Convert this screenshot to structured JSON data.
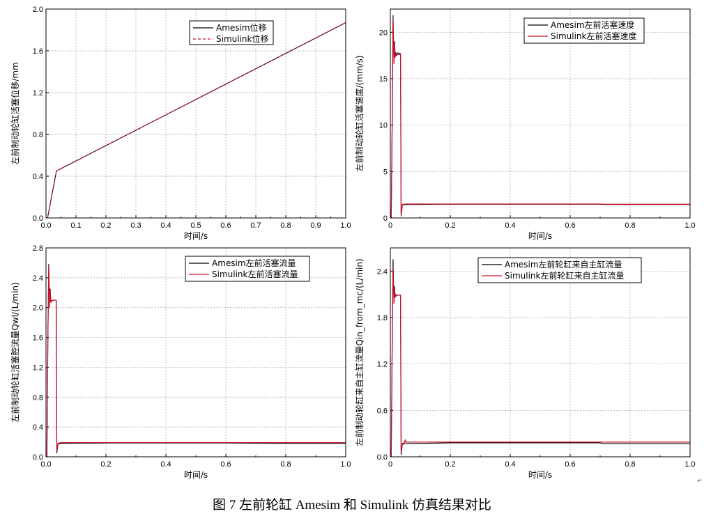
{
  "caption": "图 7 左前轮缸 Amesim 和 Simulink 仿真结果对比",
  "colors": {
    "amesim": "#000000",
    "simulink": "#c8102e",
    "grid": "#a0a0a0"
  },
  "chart_data": [
    {
      "type": "line",
      "xlabel": "时间/s",
      "ylabel": "左前制动轮缸活塞位移/mm",
      "xlim": [
        0,
        1.0
      ],
      "ylim": [
        0,
        2.0
      ],
      "xticks": [
        0,
        0.1,
        0.2,
        0.3,
        0.4,
        0.5,
        0.6,
        0.7,
        0.8,
        0.9,
        1.0
      ],
      "yticks": [
        0,
        0.4,
        0.8,
        1.2,
        1.6,
        2.0
      ],
      "xtick_labels": [
        "0.0",
        "0.1",
        "0.2",
        "0.3",
        "0.4",
        "0.5",
        "0.6",
        "0.7",
        "0.8",
        "0.9",
        "1.0"
      ],
      "ytick_labels": [
        "0.0",
        "0.4",
        "0.8",
        "1.2",
        "1.6",
        "2.0"
      ],
      "legend_position": "top-right",
      "series": [
        {
          "name": "Amesim位移",
          "style": "solid",
          "x": [
            0.005,
            0.035,
            1.0
          ],
          "y": [
            0.0,
            0.45,
            1.87
          ]
        },
        {
          "name": "Simulink位移",
          "style": "dashed",
          "x": [
            0.005,
            0.035,
            1.0
          ],
          "y": [
            0.0,
            0.45,
            1.87
          ]
        }
      ]
    },
    {
      "type": "line",
      "xlabel": "时间/s",
      "ylabel": "左前制动轮缸活塞速度/(mm/s)",
      "xlim": [
        0,
        1.0
      ],
      "ylim": [
        0,
        22.5
      ],
      "xticks": [
        0,
        0.2,
        0.4,
        0.6,
        0.8,
        1.0
      ],
      "yticks": [
        0,
        5,
        10,
        15,
        20
      ],
      "xtick_labels": [
        "0",
        "0.2",
        "0.4",
        "0.6",
        "0.8",
        "1.0"
      ],
      "ytick_labels": [
        "0",
        "5",
        "10",
        "15",
        "20"
      ],
      "legend_position": "top-right",
      "series": [
        {
          "name": "Amesim左前活塞速度",
          "style": "solid",
          "x": [
            0.003,
            0.006,
            0.009,
            0.012,
            0.014,
            0.016,
            0.018,
            0.02,
            0.025,
            0.03,
            0.034,
            0.036,
            0.04,
            0.05,
            0.2,
            0.4,
            0.6,
            0.7,
            0.71,
            0.8,
            1.0
          ],
          "y": [
            0,
            10,
            21.8,
            16.8,
            19,
            17.5,
            17.8,
            17.6,
            17.8,
            17.7,
            17.7,
            0.2,
            1.4,
            1.45,
            1.48,
            1.48,
            1.48,
            1.48,
            1.45,
            1.45,
            1.45
          ]
        },
        {
          "name": "Simulink左前活塞速度",
          "style": "solid",
          "x": [
            0.003,
            0.006,
            0.009,
            0.012,
            0.014,
            0.016,
            0.018,
            0.02,
            0.025,
            0.03,
            0.034,
            0.036,
            0.04,
            0.05,
            0.2,
            0.4,
            0.6,
            0.7,
            0.71,
            0.8,
            1.0
          ],
          "y": [
            0,
            10,
            21.4,
            16.6,
            18.7,
            17.3,
            17.6,
            17.5,
            17.6,
            17.6,
            17.6,
            0.3,
            1.45,
            1.5,
            1.5,
            1.5,
            1.5,
            1.5,
            1.48,
            1.48,
            1.48
          ]
        }
      ]
    },
    {
      "type": "line",
      "xlabel": "时间/s",
      "ylabel": "左前制动轮缸活塞腔流量Qwl/(L/min)",
      "xlim": [
        0,
        1.0
      ],
      "ylim": [
        0,
        2.8
      ],
      "xticks": [
        0,
        0.2,
        0.4,
        0.6,
        0.8,
        1.0
      ],
      "yticks": [
        0,
        0.4,
        0.8,
        1.2,
        1.6,
        2.0,
        2.4,
        2.8
      ],
      "xtick_labels": [
        "0.0",
        "0.2",
        "0.4",
        "0.6",
        "0.8",
        "1.0"
      ],
      "ytick_labels": [
        "0.0",
        "0.4",
        "0.8",
        "1.2",
        "1.6",
        "2.0",
        "2.4",
        "2.8"
      ],
      "legend_position": "top-right",
      "series": [
        {
          "name": "Amesim左前活塞流量",
          "style": "solid",
          "x": [
            0.003,
            0.006,
            0.009,
            0.012,
            0.014,
            0.016,
            0.018,
            0.02,
            0.025,
            0.03,
            0.034,
            0.036,
            0.04,
            0.05,
            0.2,
            0.4,
            0.6,
            0.8,
            1.0
          ],
          "y": [
            0,
            1.5,
            2.58,
            2.0,
            2.25,
            2.08,
            2.1,
            2.09,
            2.1,
            2.1,
            2.1,
            0.05,
            0.17,
            0.18,
            0.185,
            0.185,
            0.185,
            0.18,
            0.18
          ]
        },
        {
          "name": "Simulink左前活塞流量",
          "style": "solid",
          "x": [
            0.003,
            0.006,
            0.009,
            0.012,
            0.014,
            0.016,
            0.018,
            0.02,
            0.025,
            0.03,
            0.034,
            0.036,
            0.04,
            0.05,
            0.2,
            0.4,
            0.6,
            0.8,
            1.0
          ],
          "y": [
            0,
            1.5,
            2.55,
            2.0,
            2.22,
            2.07,
            2.1,
            2.09,
            2.1,
            2.1,
            2.1,
            0.08,
            0.18,
            0.19,
            0.19,
            0.19,
            0.19,
            0.19,
            0.19
          ]
        }
      ]
    },
    {
      "type": "line",
      "xlabel": "时间/s",
      "ylabel": "左前制动轮缸来自主缸流量Qin_from_mc/(L/min)",
      "xlim": [
        0,
        1.0
      ],
      "ylim": [
        0,
        2.7
      ],
      "xticks": [
        0,
        0.2,
        0.4,
        0.6,
        0.8,
        1.0
      ],
      "yticks": [
        0,
        0.6,
        1.2,
        1.8,
        2.4
      ],
      "xtick_labels": [
        "0",
        "0.2",
        "0.4",
        "0.6",
        "0.8",
        "1.0"
      ],
      "ytick_labels": [
        "0.0",
        "0.6",
        "1.2",
        "1.8",
        "2.4"
      ],
      "legend_position": "top-right",
      "series": [
        {
          "name": "Amesim左前轮缸来自主缸流量",
          "style": "solid",
          "x": [
            0.003,
            0.006,
            0.009,
            0.012,
            0.014,
            0.016,
            0.018,
            0.02,
            0.025,
            0.03,
            0.034,
            0.036,
            0.04,
            0.05,
            0.2,
            0.4,
            0.6,
            0.7,
            0.71,
            0.8,
            1.0
          ],
          "y": [
            0,
            1.4,
            2.55,
            2.0,
            2.2,
            2.07,
            2.1,
            2.08,
            2.09,
            2.09,
            2.09,
            0.03,
            0.16,
            0.17,
            0.18,
            0.18,
            0.18,
            0.18,
            0.17,
            0.17,
            0.17
          ]
        },
        {
          "name": "Simulink左前轮缸来自主缸流量",
          "style": "solid",
          "x": [
            0.003,
            0.006,
            0.009,
            0.012,
            0.014,
            0.016,
            0.018,
            0.02,
            0.025,
            0.03,
            0.034,
            0.036,
            0.04,
            0.048,
            0.05,
            0.052,
            0.06,
            0.2,
            0.4,
            0.6,
            0.8,
            1.0
          ],
          "y": [
            0,
            1.4,
            2.45,
            1.98,
            2.17,
            2.06,
            2.09,
            2.08,
            2.09,
            2.09,
            2.09,
            0.06,
            0.17,
            0.19,
            0.22,
            0.19,
            0.19,
            0.19,
            0.19,
            0.19,
            0.19,
            0.19
          ]
        }
      ]
    }
  ]
}
